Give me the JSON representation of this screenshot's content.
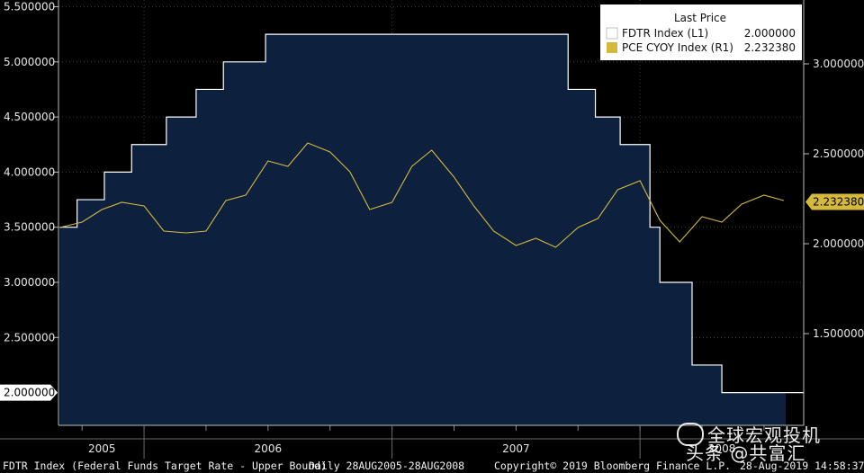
{
  "chart_data": {
    "type": "line",
    "title": "",
    "legend": {
      "title": "Last Price",
      "position": "top-right",
      "entries": [
        {
          "name": "FDTR Index  (L1)",
          "value": "2.000000",
          "color": "#ffffff"
        },
        {
          "name": "PCE CYOY Index  (R1)",
          "value": "2.232380",
          "color": "#d4b93c"
        }
      ]
    },
    "x_axis": {
      "labels": [
        "2005",
        "2006",
        "2007",
        "2008"
      ],
      "range": [
        "2005-08-28",
        "2008-08-28"
      ],
      "period_start": [
        2005.66,
        2006.0,
        2007.0,
        2008.0
      ],
      "period_end": [
        2006.0,
        2007.0,
        2008.0,
        2008.66
      ]
    },
    "left_axis": {
      "ylim": [
        1.6,
        5.6
      ],
      "ticks": [
        "2.500000",
        "3.000000",
        "3.500000",
        "4.000000",
        "4.500000",
        "5.000000",
        "5.500000"
      ],
      "tick_values": [
        2.5,
        3.0,
        3.5,
        4.0,
        4.5,
        5.0,
        5.5
      ],
      "last_value_label": "2.000000",
      "last_value": 2.0
    },
    "right_axis": {
      "ylim": [
        1.0,
        3.3
      ],
      "ticks": [
        "1.500000",
        "2.000000",
        "2.500000",
        "3.000000"
      ],
      "tick_values": [
        1.5,
        2.0,
        2.5,
        3.0
      ],
      "last_value_label": "2.232380",
      "last_value": 2.23238
    },
    "series": [
      {
        "name": "FDTR Index",
        "axis": "left",
        "style": "step-area",
        "color": "#ffffff",
        "fill": "#0d213f",
        "x": [
          2005.66,
          2005.73,
          2005.84,
          2005.95,
          2006.09,
          2006.21,
          2006.32,
          2006.49,
          2007.71,
          2007.82,
          2007.92,
          2008.04,
          2008.055,
          2008.08,
          2008.21,
          2008.33,
          2008.66
        ],
        "values": [
          3.5,
          3.75,
          4.0,
          4.25,
          4.5,
          4.75,
          5.0,
          5.25,
          4.75,
          4.5,
          4.25,
          3.5,
          3.5,
          3.0,
          2.25,
          2.0,
          2.0
        ]
      },
      {
        "name": "PCE CYOY Index",
        "axis": "right",
        "style": "line",
        "color": "#d4b93c",
        "x": [
          2005.66,
          2005.75,
          2005.83,
          2005.91,
          2006.0,
          2006.08,
          2006.17,
          2006.25,
          2006.33,
          2006.41,
          2006.5,
          2006.58,
          2006.66,
          2006.75,
          2006.83,
          2006.91,
          2007.0,
          2007.08,
          2007.16,
          2007.25,
          2007.33,
          2007.41,
          2007.5,
          2007.58,
          2007.66,
          2007.75,
          2007.83,
          2007.91,
          2008.0,
          2008.08,
          2008.16,
          2008.25,
          2008.33,
          2008.41,
          2008.5,
          2008.58
        ],
        "values": [
          2.09,
          2.12,
          2.19,
          2.23,
          2.21,
          2.07,
          2.06,
          2.07,
          2.24,
          2.27,
          2.46,
          2.43,
          2.56,
          2.51,
          2.4,
          2.19,
          2.23,
          2.43,
          2.52,
          2.37,
          2.21,
          2.07,
          1.99,
          2.03,
          1.98,
          2.09,
          2.14,
          2.3,
          2.35,
          2.13,
          2.01,
          2.15,
          2.12,
          2.22,
          2.27,
          2.24
        ]
      }
    ]
  },
  "footer": {
    "series_description": "FDTR Index (Federal Funds Target Rate - Upper Bound)",
    "frequency_range": "Daily 28AUG2005-28AUG2008",
    "copyright": "Copyright© 2019 Bloomberg Finance L.P.",
    "timestamp": "28-Aug-2019 14:58:37"
  },
  "watermark": {
    "line1": "全球宏观投机",
    "line2": "头条 @共富汇"
  },
  "colors": {
    "background": "#000000",
    "plot_fill": "#0d213f",
    "fdtr": "#ffffff",
    "pce": "#d4b93c",
    "legend_bg": "#ffffff"
  }
}
